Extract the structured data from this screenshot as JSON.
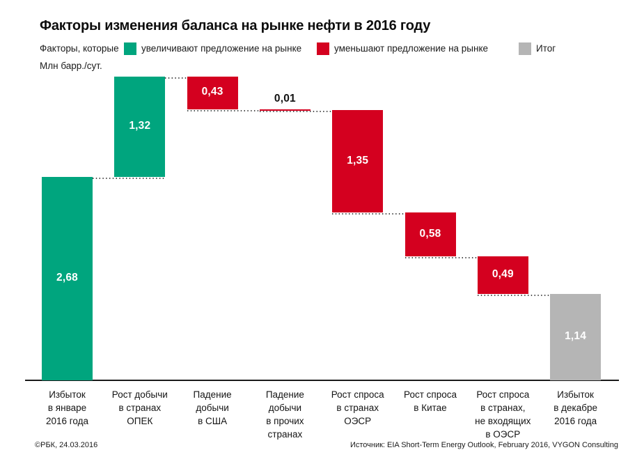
{
  "title": "Факторы изменения баланса на рынке нефти в 2016 году",
  "legend": {
    "prefix": "Факторы, которые",
    "items": [
      {
        "label": "увеличивают предложение на рынке",
        "color": "#00a57e",
        "kind": "increase"
      },
      {
        "label": "уменьшают предложение на рынке",
        "color": "#d4001f",
        "kind": "decrease"
      },
      {
        "label": "Итог",
        "color": "#b5b5b5",
        "kind": "total"
      }
    ]
  },
  "unit_label": "Млн барр./сут.",
  "footer": {
    "left": "©РБК, 24.03.2016",
    "right": "Источник: EIA Short-Term Energy Outlook, February 2016, VYGON Consulting"
  },
  "chart_data": {
    "type": "bar",
    "subtype": "waterfall",
    "title": "Факторы изменения баланса на рынке нефти в 2016 году",
    "ylabel": "Млн барр./сут.",
    "ylim": [
      0,
      4.0
    ],
    "grid": false,
    "legend_position": "top",
    "colors": {
      "increase": "#00a57e",
      "decrease": "#d4001f",
      "total": "#b5b5b5"
    },
    "categories": [
      "Избыток в январе 2016 года",
      "Рост добычи в странах ОПЕК",
      "Падение добычи в США",
      "Падение добычи в прочих странах",
      "Рост спроса в странах ОЭСР",
      "Рост спроса в Китае",
      "Рост спроса в странах, не входящих в ОЭСР",
      "Избыток в декабре 2016 года"
    ],
    "bars": [
      {
        "category_lines": [
          "Избыток",
          "в январе",
          "2016 года"
        ],
        "value": 2.68,
        "value_label": "2,68",
        "kind": "increase",
        "from": 0.0,
        "to": 2.68
      },
      {
        "category_lines": [
          "Рост добычи",
          "в странах",
          "ОПЕК"
        ],
        "value": 1.32,
        "value_label": "1,32",
        "kind": "increase",
        "from": 2.68,
        "to": 4.0
      },
      {
        "category_lines": [
          "Падение",
          "добычи",
          "в США"
        ],
        "value": 0.43,
        "value_label": "0,43",
        "kind": "decrease",
        "from": 4.0,
        "to": 3.57
      },
      {
        "category_lines": [
          "Падение",
          "добычи",
          "в прочих",
          "странах"
        ],
        "value": 0.01,
        "value_label": "0,01",
        "kind": "decrease",
        "from": 3.57,
        "to": 3.56
      },
      {
        "category_lines": [
          "Рост спроса",
          "в странах",
          "ОЭСР"
        ],
        "value": 1.35,
        "value_label": "1,35",
        "kind": "decrease",
        "from": 3.56,
        "to": 2.21
      },
      {
        "category_lines": [
          "Рост спроса",
          "в Китае"
        ],
        "value": 0.58,
        "value_label": "0,58",
        "kind": "decrease",
        "from": 2.21,
        "to": 1.63
      },
      {
        "category_lines": [
          "Рост спроса",
          "в странах,",
          "не входящих",
          "в ОЭСР"
        ],
        "value": 0.49,
        "value_label": "0,49",
        "kind": "decrease",
        "from": 1.63,
        "to": 1.14
      },
      {
        "category_lines": [
          "Избыток",
          "в декабре",
          "2016 года"
        ],
        "value": 1.14,
        "value_label": "1,14",
        "kind": "total",
        "from": 0.0,
        "to": 1.14
      }
    ]
  }
}
